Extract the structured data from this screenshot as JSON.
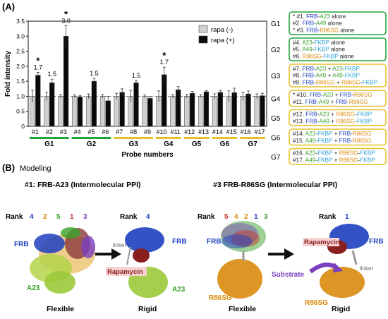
{
  "panel_a": {
    "label": "(A)",
    "ylabel": "Fold intensity",
    "xlabel": "Probe numbers",
    "legend": {
      "minus": "rapa (-)",
      "plus": "rapa (+)"
    },
    "groups": [
      {
        "label": "G1",
        "color": "#23a43a",
        "from": 0,
        "to": 2
      },
      {
        "label": "G2",
        "color": "#23a43a",
        "from": 3,
        "to": 5
      },
      {
        "label": "G3",
        "color": "#e8c02a",
        "from": 6,
        "to": 8
      },
      {
        "label": "G4",
        "color": "#e8c02a",
        "from": 9,
        "to": 10
      },
      {
        "label": "G5",
        "color": "#e8c02a",
        "from": 11,
        "to": 12
      },
      {
        "label": "G6",
        "color": "#e8c02a",
        "from": 13,
        "to": 14
      },
      {
        "label": "G7",
        "color": "#e8c02a",
        "from": 15,
        "to": 16
      }
    ],
    "value_labels": [
      {
        "probe": 0,
        "text": "1.7",
        "star": true
      },
      {
        "probe": 1,
        "text": "1.5",
        "star": false
      },
      {
        "probe": 2,
        "text": "3.0",
        "star": true
      },
      {
        "probe": 4,
        "text": "1.5",
        "star": false
      },
      {
        "probe": 7,
        "text": "1.5",
        "star": false
      },
      {
        "probe": 9,
        "text": "1.7",
        "star": true
      }
    ],
    "star_text": "*"
  },
  "chart_data": {
    "type": "bar",
    "categories": [
      "#1",
      "#2",
      "#3",
      "#4",
      "#5",
      "#6",
      "#7",
      "#8",
      "#9",
      "#10",
      "#11",
      "#12",
      "#13",
      "#14",
      "#15",
      "#16",
      "#17"
    ],
    "series": [
      {
        "name": "rapa (-)",
        "color": "#d0d0d0",
        "values": [
          1.0,
          1.0,
          1.0,
          1.0,
          1.0,
          1.0,
          1.0,
          1.0,
          1.0,
          1.0,
          1.0,
          1.0,
          1.0,
          1.0,
          1.0,
          1.0,
          1.0
        ],
        "errors": [
          0.2,
          0.14,
          0.06,
          0.05,
          0.08,
          0.06,
          0.1,
          0.2,
          0.05,
          0.18,
          0.06,
          0.06,
          0.05,
          0.08,
          0.18,
          0.14,
          0.08
        ]
      },
      {
        "name": "rapa (+)",
        "color": "#0a0a0a",
        "values": [
          1.7,
          1.45,
          3.0,
          0.98,
          1.5,
          0.85,
          1.13,
          1.45,
          0.93,
          1.72,
          1.22,
          1.1,
          1.15,
          1.13,
          1.12,
          1.08,
          1.02
        ],
        "errors": [
          0.1,
          0.12,
          0.35,
          0.05,
          0.1,
          0.15,
          0.12,
          0.08,
          0.06,
          0.25,
          0.1,
          0.06,
          0.04,
          0.07,
          0.15,
          0.1,
          0.08
        ]
      }
    ],
    "ylabel": "Fold intensity",
    "xlabel": "Probe numbers",
    "ylim": [
      0,
      3.5
    ],
    "yticks": [
      "0",
      "0.5",
      "1.0",
      "1.5",
      "2.0",
      "2.5",
      "3.0",
      "3.5"
    ],
    "grid": false,
    "legend_position": "top-right"
  },
  "group_boxes": [
    {
      "label": "G1",
      "border": "#23a43a",
      "lines": [
        [
          {
            "t": "* #1. ",
            "c": "#222"
          },
          {
            "t": "FRB",
            "c": "#1d3fbf"
          },
          {
            "t": "-",
            "c": "#222"
          },
          {
            "t": "A23",
            "c": "#3aa12b"
          },
          {
            "t": " alone",
            "c": "#222"
          }
        ],
        [
          {
            "t": "#2. ",
            "c": "#222"
          },
          {
            "t": "FRB",
            "c": "#1d3fbf"
          },
          {
            "t": "-",
            "c": "#222"
          },
          {
            "t": "A49",
            "c": "#3aa12b"
          },
          {
            "t": " alone",
            "c": "#222"
          }
        ],
        [
          {
            "t": "* #3. ",
            "c": "#222"
          },
          {
            "t": "FRB",
            "c": "#1d3fbf"
          },
          {
            "t": "-",
            "c": "#222"
          },
          {
            "t": "R86SG",
            "c": "#d98a0e"
          },
          {
            "t": " alone",
            "c": "#222"
          }
        ]
      ]
    },
    {
      "label": "G2",
      "border": "#23a43a",
      "lines": [
        [
          {
            "t": "#4. ",
            "c": "#222"
          },
          {
            "t": "A23",
            "c": "#3aa12b"
          },
          {
            "t": "-",
            "c": "#222"
          },
          {
            "t": "FKBP",
            "c": "#2aa0d8"
          },
          {
            "t": " alone",
            "c": "#222"
          }
        ],
        [
          {
            "t": "#5. ",
            "c": "#222"
          },
          {
            "t": "A49",
            "c": "#3aa12b"
          },
          {
            "t": "-",
            "c": "#222"
          },
          {
            "t": "FKBP",
            "c": "#2aa0d8"
          },
          {
            "t": " alone",
            "c": "#222"
          }
        ],
        [
          {
            "t": "#6. ",
            "c": "#222"
          },
          {
            "t": "R86SG",
            "c": "#d98a0e"
          },
          {
            "t": "-",
            "c": "#222"
          },
          {
            "t": "FKBP",
            "c": "#2aa0d8"
          },
          {
            "t": " alone",
            "c": "#222"
          }
        ]
      ]
    },
    {
      "label": "G3",
      "border": "#e8c02a",
      "lines": [
        [
          {
            "t": "#7. ",
            "c": "#222"
          },
          {
            "t": "FRB",
            "c": "#1d3fbf"
          },
          {
            "t": "-",
            "c": "#222"
          },
          {
            "t": "A23",
            "c": "#3aa12b"
          },
          {
            "t": " + ",
            "c": "#222"
          },
          {
            "t": "A23",
            "c": "#3aa12b"
          },
          {
            "t": "-",
            "c": "#222"
          },
          {
            "t": "FKBP",
            "c": "#2aa0d8"
          }
        ],
        [
          {
            "t": "#8. ",
            "c": "#222"
          },
          {
            "t": "FRB",
            "c": "#1d3fbf"
          },
          {
            "t": "-",
            "c": "#222"
          },
          {
            "t": "A49",
            "c": "#3aa12b"
          },
          {
            "t": " + ",
            "c": "#222"
          },
          {
            "t": "A49",
            "c": "#3aa12b"
          },
          {
            "t": "-",
            "c": "#222"
          },
          {
            "t": "FKBP",
            "c": "#2aa0d8"
          }
        ],
        [
          {
            "t": "#9. ",
            "c": "#222"
          },
          {
            "t": "FRB",
            "c": "#1d3fbf"
          },
          {
            "t": "-",
            "c": "#222"
          },
          {
            "t": "R86SG",
            "c": "#d98a0e"
          },
          {
            "t": " + ",
            "c": "#222"
          },
          {
            "t": "R86SG",
            "c": "#d98a0e"
          },
          {
            "t": "-",
            "c": "#222"
          },
          {
            "t": "FKBP",
            "c": "#2aa0d8"
          }
        ]
      ]
    },
    {
      "label": "G4",
      "border": "#e8c02a",
      "lines": [
        [
          {
            "t": "* #10. ",
            "c": "#222"
          },
          {
            "t": "FRB",
            "c": "#1d3fbf"
          },
          {
            "t": "-",
            "c": "#222"
          },
          {
            "t": "A23",
            "c": "#3aa12b"
          },
          {
            "t": " + ",
            "c": "#222"
          },
          {
            "t": "FRB",
            "c": "#1d3fbf"
          },
          {
            "t": "-",
            "c": "#222"
          },
          {
            "t": "R86SG",
            "c": "#d98a0e"
          }
        ],
        [
          {
            "t": "#11. ",
            "c": "#222"
          },
          {
            "t": "FRB",
            "c": "#1d3fbf"
          },
          {
            "t": "-",
            "c": "#222"
          },
          {
            "t": "A49",
            "c": "#3aa12b"
          },
          {
            "t": " + ",
            "c": "#222"
          },
          {
            "t": "FRB",
            "c": "#1d3fbf"
          },
          {
            "t": "-",
            "c": "#222"
          },
          {
            "t": "R86SG",
            "c": "#d98a0e"
          }
        ]
      ]
    },
    {
      "label": "G5",
      "border": "#e8c02a",
      "lines": [
        [
          {
            "t": "#12. ",
            "c": "#222"
          },
          {
            "t": "FRB",
            "c": "#1d3fbf"
          },
          {
            "t": "-",
            "c": "#222"
          },
          {
            "t": "A23",
            "c": "#3aa12b"
          },
          {
            "t": " + ",
            "c": "#222"
          },
          {
            "t": "R86SG",
            "c": "#d98a0e"
          },
          {
            "t": "-",
            "c": "#222"
          },
          {
            "t": "FKBP",
            "c": "#2aa0d8"
          }
        ],
        [
          {
            "t": "#13. ",
            "c": "#222"
          },
          {
            "t": "FRB",
            "c": "#1d3fbf"
          },
          {
            "t": "-",
            "c": "#222"
          },
          {
            "t": "A49",
            "c": "#3aa12b"
          },
          {
            "t": " + ",
            "c": "#222"
          },
          {
            "t": "R86SG",
            "c": "#d98a0e"
          },
          {
            "t": "-",
            "c": "#222"
          },
          {
            "t": "FKBP",
            "c": "#2aa0d8"
          }
        ]
      ]
    },
    {
      "label": "G6",
      "border": "#e8c02a",
      "lines": [
        [
          {
            "t": "#14. ",
            "c": "#222"
          },
          {
            "t": "A23",
            "c": "#3aa12b"
          },
          {
            "t": "-",
            "c": "#222"
          },
          {
            "t": "FKBP",
            "c": "#2aa0d8"
          },
          {
            "t": " + ",
            "c": "#222"
          },
          {
            "t": "FRB",
            "c": "#1d3fbf"
          },
          {
            "t": "-",
            "c": "#222"
          },
          {
            "t": "R86SG",
            "c": "#d98a0e"
          }
        ],
        [
          {
            "t": "#15. ",
            "c": "#222"
          },
          {
            "t": "A49",
            "c": "#3aa12b"
          },
          {
            "t": "-",
            "c": "#222"
          },
          {
            "t": "FKBP",
            "c": "#2aa0d8"
          },
          {
            "t": " + ",
            "c": "#222"
          },
          {
            "t": "FRB",
            "c": "#1d3fbf"
          },
          {
            "t": "-",
            "c": "#222"
          },
          {
            "t": "R86SG",
            "c": "#d98a0e"
          }
        ]
      ]
    },
    {
      "label": "G7",
      "border": "#e8c02a",
      "lines": [
        [
          {
            "t": "#16. ",
            "c": "#222"
          },
          {
            "t": "A23",
            "c": "#3aa12b"
          },
          {
            "t": "-",
            "c": "#222"
          },
          {
            "t": "FKBP",
            "c": "#2aa0d8"
          },
          {
            "t": " + ",
            "c": "#222"
          },
          {
            "t": "R86SG",
            "c": "#d98a0e"
          },
          {
            "t": "-",
            "c": "#222"
          },
          {
            "t": "FKBP",
            "c": "#2aa0d8"
          }
        ],
        [
          {
            "t": "#17. ",
            "c": "#222"
          },
          {
            "t": "A49",
            "c": "#3aa12b"
          },
          {
            "t": "-",
            "c": "#222"
          },
          {
            "t": "FKBP",
            "c": "#2aa0d8"
          },
          {
            "t": " + ",
            "c": "#222"
          },
          {
            "t": "R86SG",
            "c": "#d98a0e"
          },
          {
            "t": "-",
            "c": "#222"
          },
          {
            "t": "FKBP",
            "c": "#2aa0d8"
          }
        ]
      ]
    }
  ],
  "panel_b": {
    "label": "(B)",
    "subtitle": "Modeling",
    "left": {
      "title": "#1: FRB-A23 (Intermolecular PPI)",
      "rank_label": "Rank",
      "ranks": [
        {
          "t": "4",
          "c": "#1d3fbf"
        },
        {
          "t": "2",
          "c": "#d98a0e"
        },
        {
          "t": "5",
          "c": "#3aa12b"
        },
        {
          "t": "1",
          "c": "#c0392b"
        },
        {
          "t": "3",
          "c": "#7b3fbf"
        }
      ],
      "rank_right": {
        "t": "4",
        "c": "#1d3fbf"
      },
      "label_frb": "FRB",
      "label_a23": "A23",
      "label_a23_right": "A23",
      "label_linker": "linker",
      "label_rapamycin": "Rapamycin",
      "caption_left": "Flexible",
      "caption_right": "Rigid"
    },
    "right": {
      "title": "#3 FRB-R86SG (Intermolecular PPI)",
      "rank_label": "Rank",
      "ranks": [
        {
          "t": "5",
          "c": "#c0392b"
        },
        {
          "t": "4",
          "c": "#d98a0e"
        },
        {
          "t": "2",
          "c": "#d98a0e"
        },
        {
          "t": "1",
          "c": "#1d3fbf"
        },
        {
          "t": "3",
          "c": "#3aa12b"
        }
      ],
      "rank_right": {
        "t": "1",
        "c": "#1d3fbf"
      },
      "label_frb": "FRB",
      "label_frb_right": "FRB",
      "label_r86sg": "R86SG",
      "label_r86sg_right": "R86SG",
      "label_linker": "linker",
      "label_rapamycin": "Rapamycin",
      "label_substrate": "Substrate",
      "caption_left": "Flexible",
      "caption_right": "Rigid"
    }
  }
}
